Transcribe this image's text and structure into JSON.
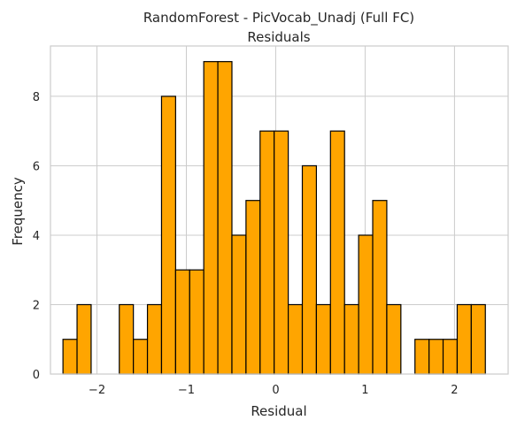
{
  "chart_data": {
    "type": "bar",
    "title": "RandomForest - PicVocab_Unadj (Full FC)",
    "subtitle": "Residuals",
    "xlabel": "Residual",
    "ylabel": "Frequency",
    "bar_color": "#ffa500",
    "edge_color": "#000000",
    "grid": true,
    "xlim": [
      -2.52,
      2.6
    ],
    "ylim": [
      0,
      9.45
    ],
    "x_ticks": [
      -2,
      -1,
      0,
      1,
      2
    ],
    "x_tick_labels": [
      "−2",
      "−1",
      "0",
      "1",
      "2"
    ],
    "y_ticks": [
      0,
      2,
      4,
      6,
      8
    ],
    "y_tick_labels": [
      "0",
      "2",
      "4",
      "6",
      "8"
    ],
    "bin_start": -2.38,
    "bin_width": 0.1575,
    "values": [
      1,
      2,
      0,
      0,
      2,
      1,
      2,
      8,
      3,
      3,
      9,
      9,
      4,
      5,
      7,
      7,
      2,
      6,
      2,
      7,
      2,
      4,
      5,
      2,
      0,
      1,
      1,
      1,
      2,
      2
    ]
  }
}
